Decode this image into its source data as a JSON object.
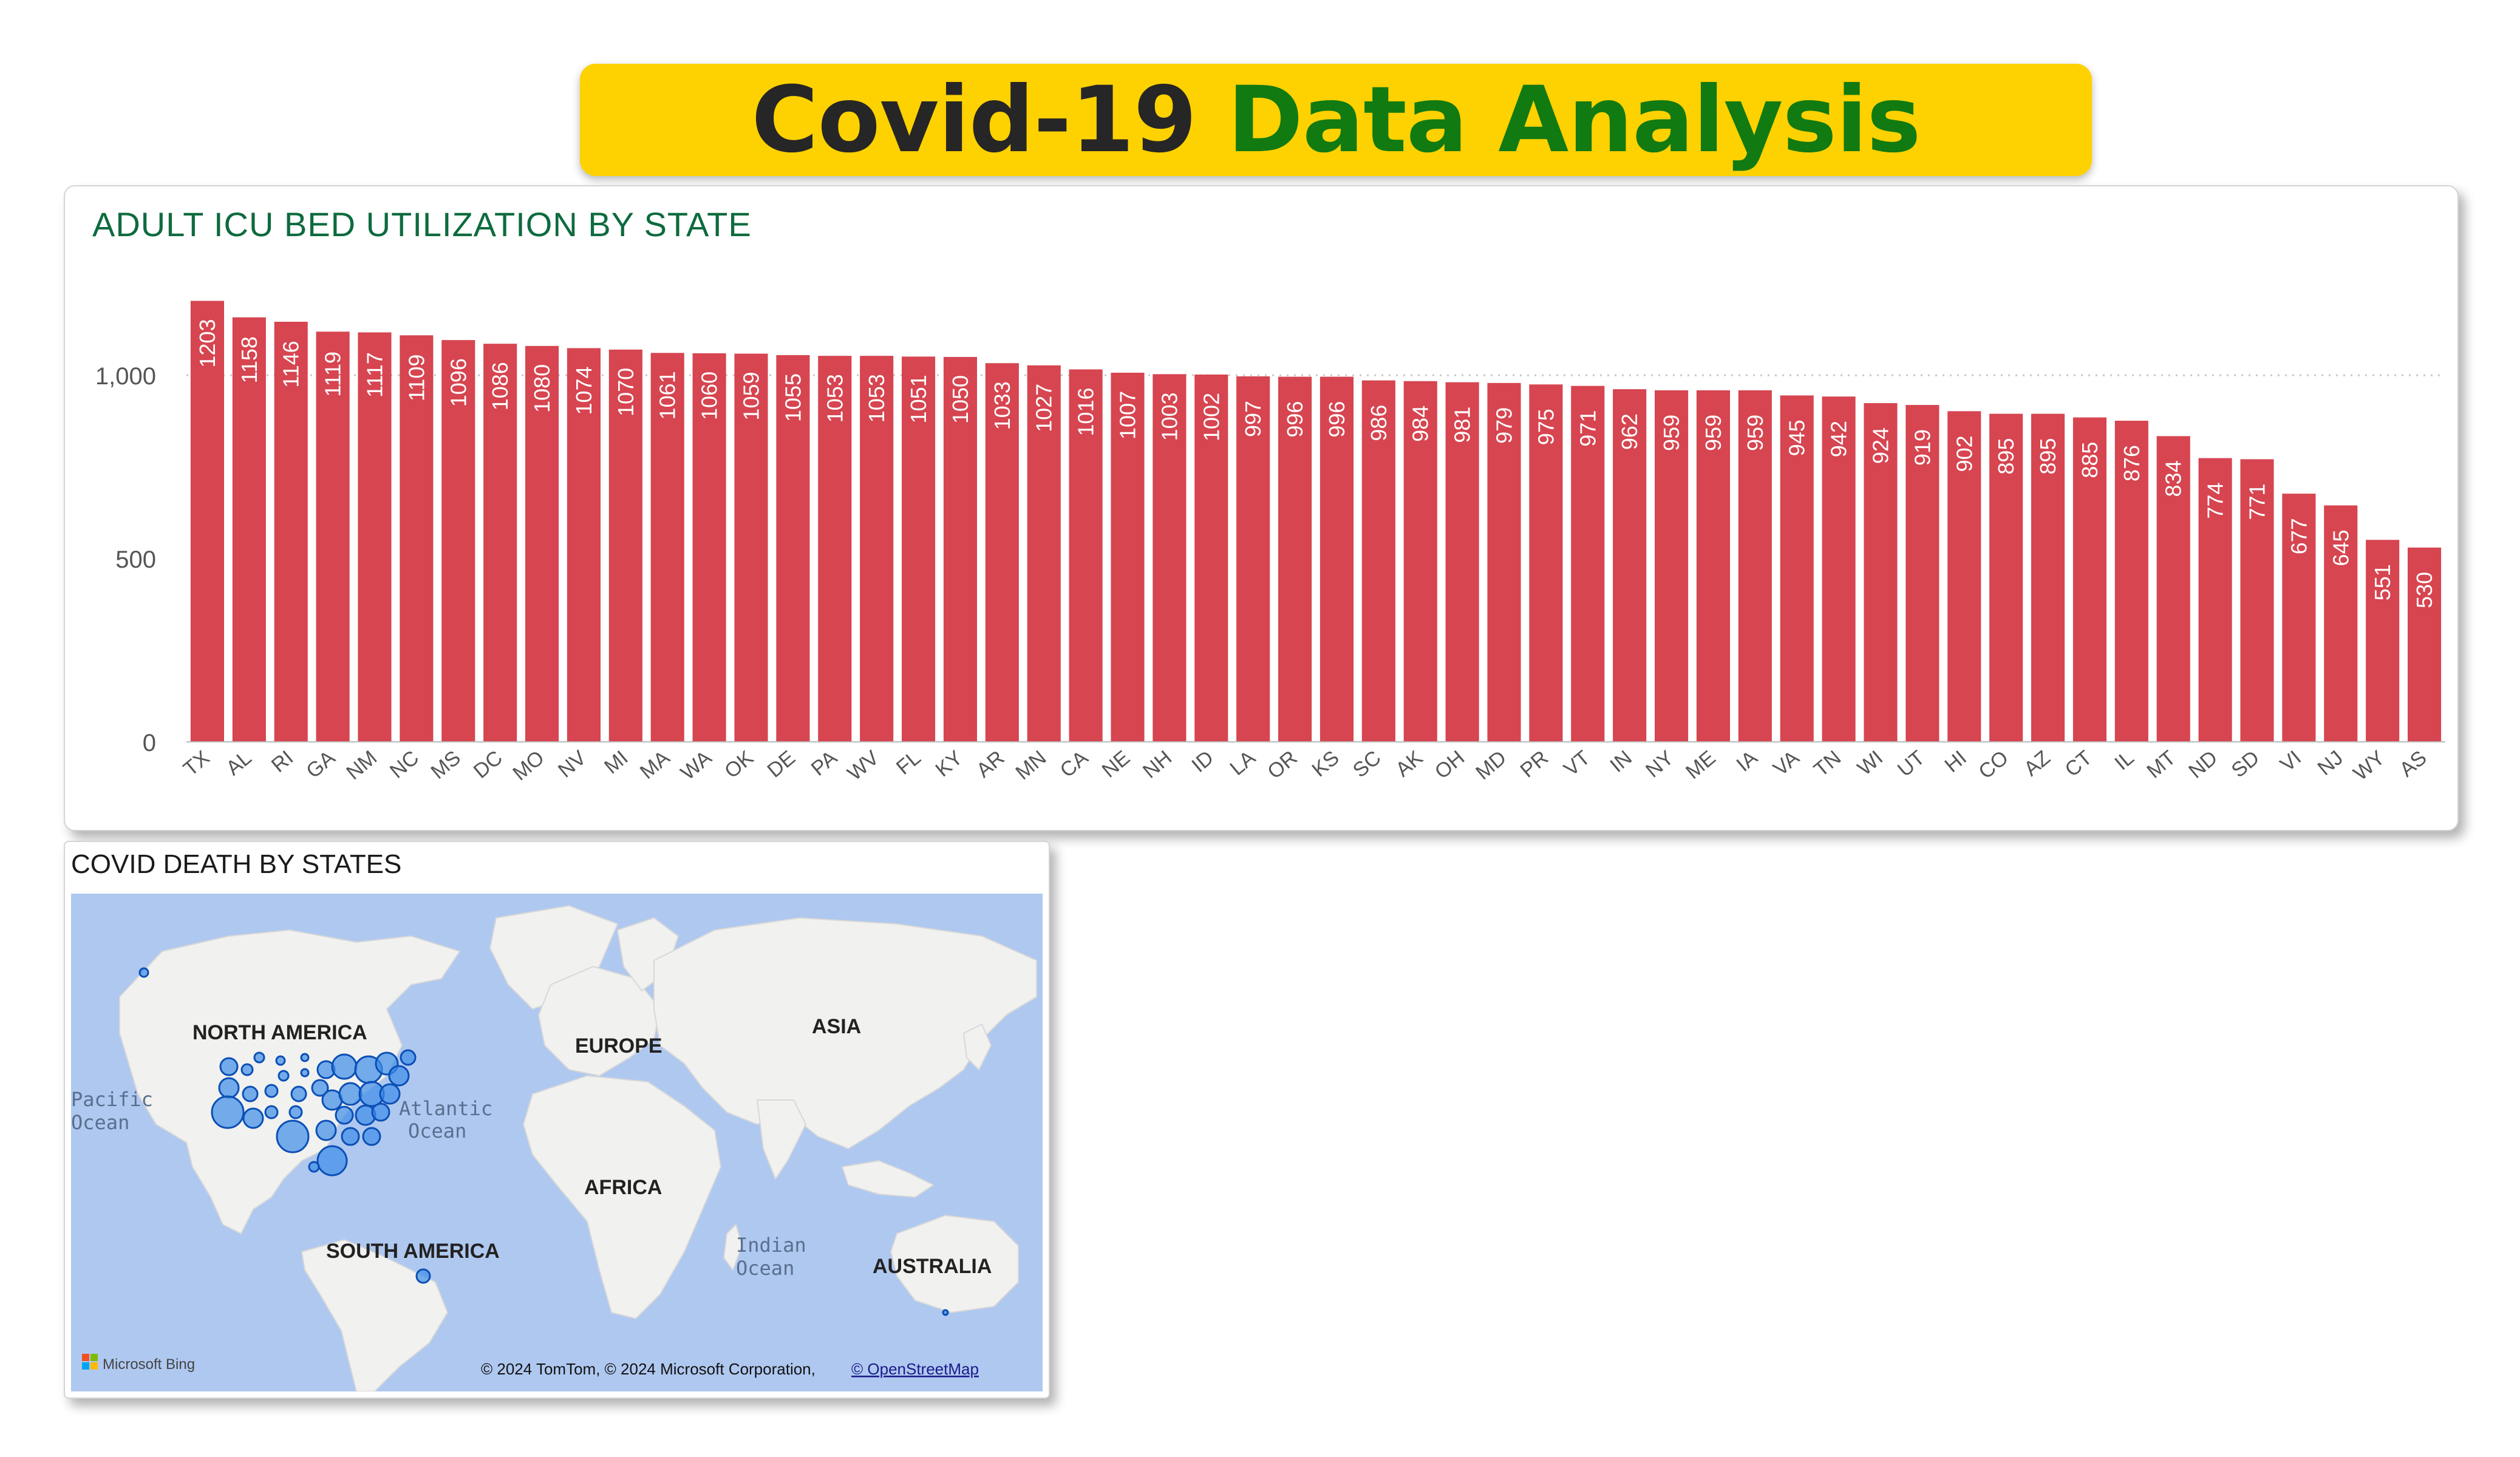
{
  "header": {
    "title_part1": "Covid-19",
    "title_part2": "Data Analysis"
  },
  "colors": {
    "banner": "#FED100",
    "title_dark": "#262626",
    "title_green": "#117A11",
    "bar": "#D64550",
    "chart_title": "#0E6B3E",
    "ocean": "#AFC8F0",
    "land": "#F1F1EF",
    "bubble": "#3D8BE8"
  },
  "chart_data": {
    "type": "bar",
    "title": "ADULT ICU BED UTILIZATION BY STATE",
    "categories": [
      "TX",
      "AL",
      "RI",
      "GA",
      "NM",
      "NC",
      "MS",
      "DC",
      "MO",
      "NV",
      "MI",
      "MA",
      "WA",
      "OK",
      "DE",
      "PA",
      "WV",
      "FL",
      "KY",
      "AR",
      "MN",
      "CA",
      "NE",
      "NH",
      "ID",
      "LA",
      "OR",
      "KS",
      "SC",
      "AK",
      "OH",
      "MD",
      "PR",
      "VT",
      "IN",
      "NY",
      "ME",
      "IA",
      "VA",
      "TN",
      "WI",
      "UT",
      "HI",
      "CO",
      "AZ",
      "CT",
      "IL",
      "MT",
      "ND",
      "SD",
      "VI",
      "NJ",
      "WY",
      "AS"
    ],
    "values": [
      1203,
      1158,
      1146,
      1119,
      1117,
      1109,
      1096,
      1086,
      1080,
      1074,
      1070,
      1061,
      1060,
      1059,
      1055,
      1053,
      1053,
      1051,
      1050,
      1033,
      1027,
      1016,
      1007,
      1003,
      1002,
      997,
      996,
      996,
      986,
      984,
      981,
      979,
      975,
      971,
      962,
      959,
      959,
      959,
      945,
      942,
      924,
      919,
      902,
      895,
      895,
      885,
      876,
      834,
      774,
      771,
      677,
      645,
      551,
      530
    ],
    "ytick_labels": [
      "0",
      "500",
      "1,000"
    ],
    "yticks": [
      0,
      500,
      1000
    ],
    "ylim": [
      0,
      1300
    ],
    "xlabel": "",
    "ylabel": "",
    "grid": true,
    "data_labels": "inside-vertical"
  },
  "map": {
    "title": "COVID DEATH BY STATES",
    "labels": {
      "north_america": "NORTH AMERICA",
      "europe": "EUROPE",
      "asia": "ASIA",
      "africa": "AFRICA",
      "south_america": "SOUTH AMERICA",
      "australia": "AUSTRALIA",
      "pacific_1": "Pacific",
      "pacific_2": "Ocean",
      "atlantic_1": "Atlantic",
      "atlantic_2": "Ocean",
      "indian_1": "Indian",
      "indian_2": "Ocean"
    },
    "logo_text": "Microsoft Bing",
    "attribution": "© 2024 TomTom, © 2024 Microsoft Corporation,",
    "attribution_link": "© OpenStreetMap"
  }
}
